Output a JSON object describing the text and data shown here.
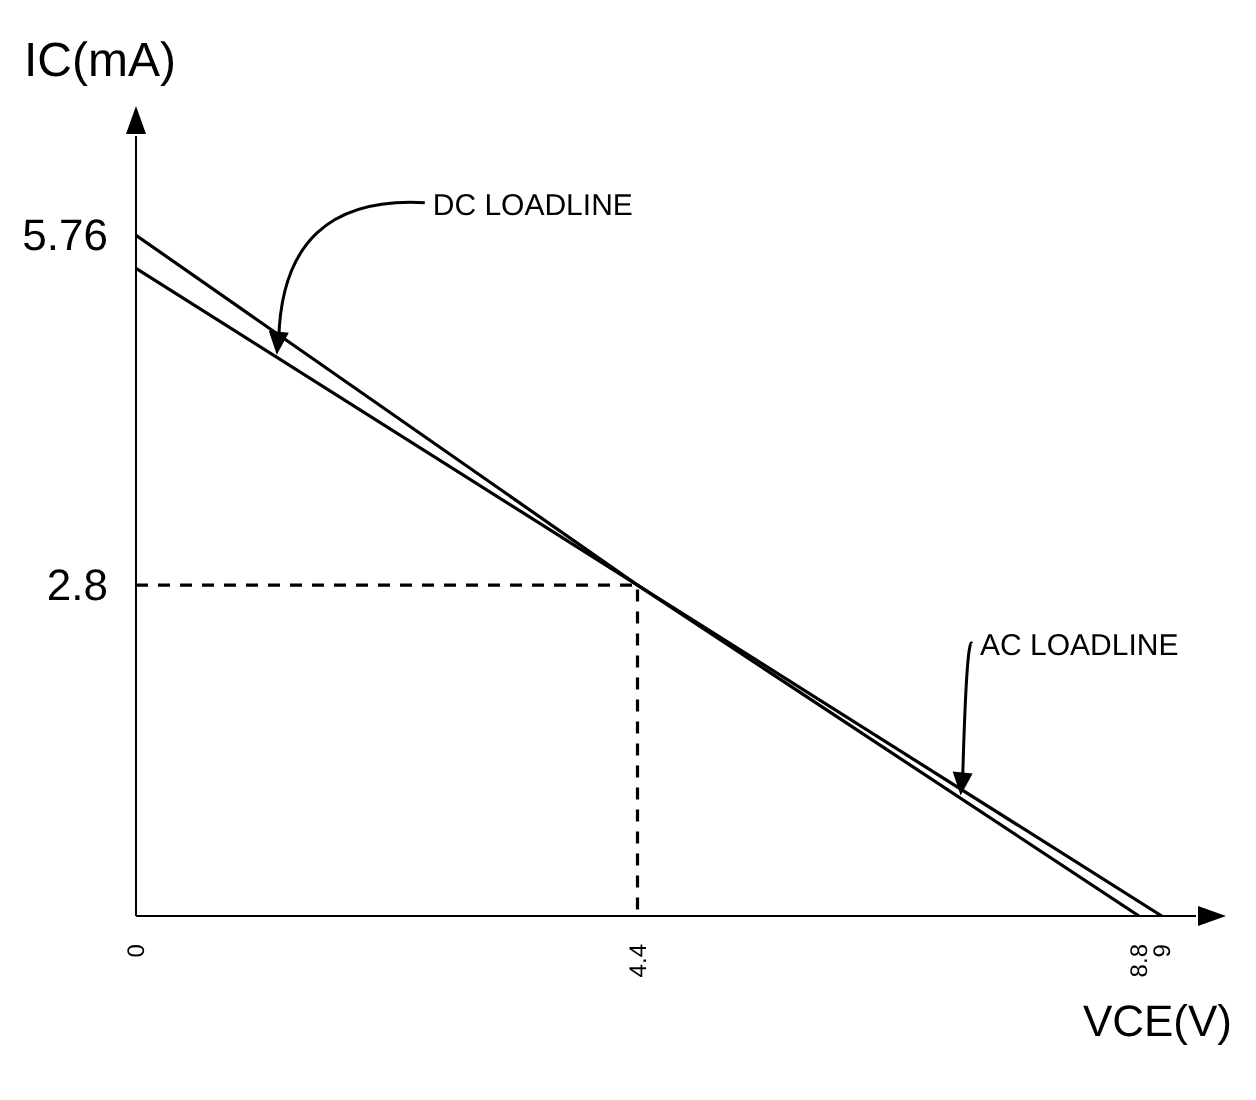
{
  "chart_data": {
    "type": "line",
    "xlabel": "VCE(V)",
    "ylabel": "IC(mA)",
    "series": [
      {
        "color": "#000000",
        "x": [
          0,
          4.4,
          9
        ],
        "values": [
          5.48,
          2.8,
          0
        ]
      },
      {
        "color": "#000000",
        "x": [
          0,
          4.4,
          8.8
        ],
        "values": [
          5.76,
          2.8,
          0
        ]
      },
      {
        "color": "#000000",
        "x": [
          0,
          4.4,
          4.4
        ],
        "values": [
          2.8,
          2.8,
          0
        ],
        "line_style": "dashed"
      }
    ],
    "annotations": [
      {
        "text": "DC LOADLINE",
        "x": 1.2,
        "y": 4.75
      },
      {
        "text": "AC LOADLINE",
        "x": 7.2,
        "y": 1.02
      }
    ],
    "xlim": [
      0,
      9.3
    ],
    "ylim": [
      0,
      6.6
    ],
    "xticks": [
      0,
      4.4,
      8.8,
      9
    ],
    "yticks": [
      2.8,
      5.76
    ],
    "grid": false,
    "marker": "none",
    "line_style": "solid"
  }
}
